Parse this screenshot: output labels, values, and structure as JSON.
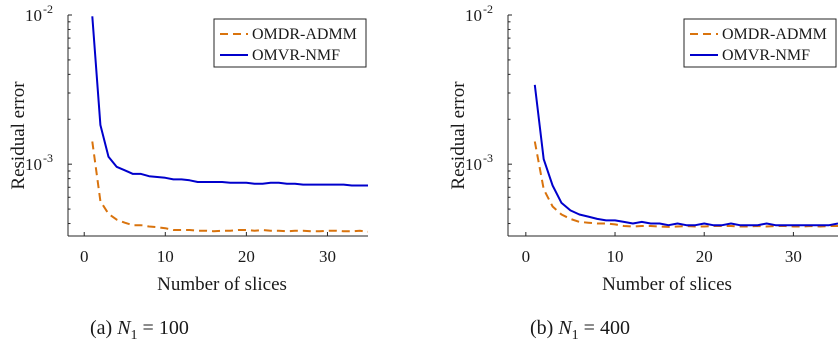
{
  "figure": {
    "captions": [
      {
        "label": "(a)",
        "var": "N",
        "sub": "1",
        "rest": " = 100"
      },
      {
        "label": "(b)",
        "var": "N",
        "sub": "1",
        "rest": " = 400"
      }
    ]
  },
  "chart_data": [
    {
      "type": "line",
      "title": "",
      "xlabel": "Number of slices",
      "ylabel": "Residual error",
      "yscale": "log",
      "xlim": [
        -2,
        35
      ],
      "ylim": [
        0.00033,
        0.01
      ],
      "xticks": [
        0,
        10,
        20,
        30
      ],
      "yticks": [
        {
          "value": 0.001,
          "base": "10",
          "exp": "-3"
        },
        {
          "value": 0.01,
          "base": "10",
          "exp": "-2"
        }
      ],
      "legend": "top-right",
      "grid": false,
      "x": [
        1,
        2,
        3,
        4,
        5,
        6,
        7,
        8,
        9,
        10,
        11,
        12,
        13,
        14,
        15,
        16,
        17,
        18,
        19,
        20,
        21,
        22,
        23,
        24,
        25,
        26,
        27,
        28,
        29,
        30,
        31,
        32,
        33,
        34,
        35
      ],
      "series": [
        {
          "name": "OMDR-ADMM",
          "style": "dashed",
          "color": "#D9730D",
          "values": [
            0.00142,
            0.000565,
            0.000465,
            0.000425,
            0.000405,
            0.00039,
            0.00039,
            0.000382,
            0.000378,
            0.000372,
            0.000362,
            0.000362,
            0.000362,
            0.000358,
            0.000358,
            0.000355,
            0.000358,
            0.000358,
            0.000362,
            0.000362,
            0.000358,
            0.000362,
            0.000358,
            0.000358,
            0.000355,
            0.000358,
            0.000358,
            0.000355,
            0.000355,
            0.000358,
            0.000358,
            0.000355,
            0.000355,
            0.000358,
            0.000352
          ]
        },
        {
          "name": "OMVR-NMF",
          "style": "solid",
          "color": "#0000CC",
          "values": [
            0.0098,
            0.00183,
            0.00112,
            0.00096,
            0.00091,
            0.00086,
            0.00086,
            0.00083,
            0.00082,
            0.00081,
            0.00079,
            0.00079,
            0.00078,
            0.00076,
            0.00076,
            0.00076,
            0.00076,
            0.00075,
            0.00075,
            0.00075,
            0.00074,
            0.00074,
            0.00075,
            0.00075,
            0.00074,
            0.00074,
            0.00073,
            0.00073,
            0.00073,
            0.00073,
            0.00073,
            0.00073,
            0.00072,
            0.00072,
            0.00072
          ]
        }
      ]
    },
    {
      "type": "line",
      "title": "",
      "xlabel": "Number of slices",
      "ylabel": "Residual error",
      "yscale": "log",
      "xlim": [
        -2,
        35
      ],
      "ylim": [
        0.00033,
        0.01
      ],
      "xticks": [
        0,
        10,
        20,
        30
      ],
      "yticks": [
        {
          "value": 0.001,
          "base": "10",
          "exp": "-3"
        },
        {
          "value": 0.01,
          "base": "10",
          "exp": "-2"
        }
      ],
      "legend": "top-right",
      "grid": false,
      "x": [
        1,
        2,
        3,
        4,
        5,
        6,
        7,
        8,
        9,
        10,
        11,
        12,
        13,
        14,
        15,
        16,
        17,
        18,
        19,
        20,
        21,
        22,
        23,
        24,
        25,
        26,
        27,
        28,
        29,
        30,
        31,
        32,
        33,
        34,
        35
      ],
      "series": [
        {
          "name": "OMDR-ADMM",
          "style": "dashed",
          "color": "#D9730D",
          "values": [
            0.00142,
            0.00068,
            0.00052,
            0.00046,
            0.00043,
            0.00041,
            0.000405,
            0.0004,
            0.0004,
            0.000395,
            0.000385,
            0.000382,
            0.000385,
            0.000385,
            0.000382,
            0.00038,
            0.000382,
            0.000385,
            0.000382,
            0.000382,
            0.000385,
            0.000385,
            0.000385,
            0.000382,
            0.000382,
            0.000385,
            0.000382,
            0.000385,
            0.000385,
            0.000382,
            0.000382,
            0.000385,
            0.000382,
            0.000385,
            0.000385
          ]
        },
        {
          "name": "OMVR-NMF",
          "style": "solid",
          "color": "#0000CC",
          "values": [
            0.0034,
            0.00108,
            0.00072,
            0.00055,
            0.00049,
            0.00046,
            0.000445,
            0.00043,
            0.00042,
            0.00042,
            0.00041,
            0.0004,
            0.00041,
            0.0004,
            0.0004,
            0.00039,
            0.0004,
            0.00039,
            0.00039,
            0.0004,
            0.00039,
            0.00039,
            0.0004,
            0.00039,
            0.00039,
            0.00039,
            0.0004,
            0.00039,
            0.00039,
            0.00039,
            0.00039,
            0.00039,
            0.00039,
            0.00039,
            0.0004
          ]
        }
      ]
    }
  ]
}
